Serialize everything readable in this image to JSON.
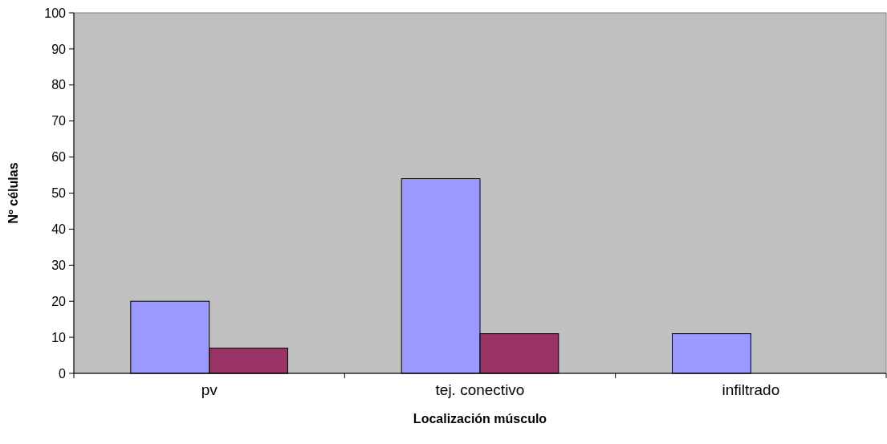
{
  "chart_data": {
    "type": "bar",
    "xlabel": "Localización músculo",
    "ylabel": "Nº células",
    "categories": [
      "pv",
      "tej. conectivo",
      "infiltrado"
    ],
    "series": [
      {
        "color": "#9999ff",
        "values": [
          20,
          54,
          11
        ]
      },
      {
        "color": "#993366",
        "values": [
          7,
          11,
          0
        ]
      }
    ],
    "ylim": [
      0,
      100
    ],
    "yticks": [
      0,
      10,
      20,
      30,
      40,
      50,
      60,
      70,
      80,
      90,
      100
    ],
    "grid": false
  }
}
